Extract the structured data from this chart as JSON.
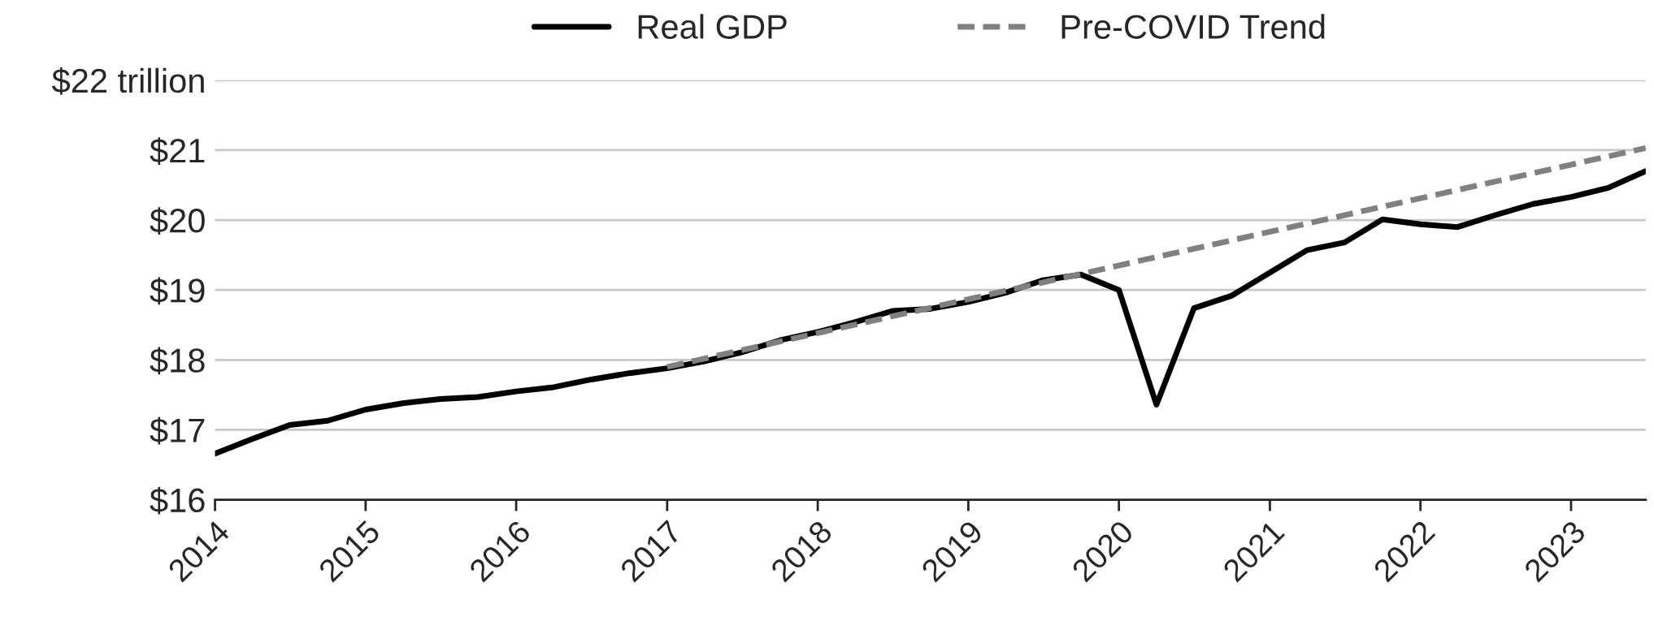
{
  "chart_data": {
    "type": "line",
    "series": [
      {
        "name": "Real GDP",
        "color": "#000000",
        "line_style": "solid",
        "x": [
          "2014-01",
          "2014-04",
          "2014-07",
          "2014-10",
          "2015-01",
          "2015-04",
          "2015-07",
          "2015-10",
          "2016-01",
          "2016-04",
          "2016-07",
          "2016-10",
          "2017-01",
          "2017-04",
          "2017-07",
          "2017-10",
          "2018-01",
          "2018-04",
          "2018-07",
          "2018-10",
          "2019-01",
          "2019-04",
          "2019-07",
          "2019-10",
          "2020-01",
          "2020-04",
          "2020-07",
          "2020-10",
          "2021-01",
          "2021-04",
          "2021-07",
          "2021-10",
          "2022-01",
          "2022-04",
          "2022-07",
          "2022-10",
          "2023-01",
          "2023-04",
          "2023-07"
        ],
        "values": [
          16.66,
          16.87,
          17.07,
          17.13,
          17.29,
          17.38,
          17.44,
          17.47,
          17.55,
          17.61,
          17.72,
          17.81,
          17.88,
          17.98,
          18.11,
          18.28,
          18.4,
          18.54,
          18.7,
          18.73,
          18.83,
          18.96,
          19.14,
          19.22,
          19.0,
          17.36,
          18.74,
          18.92,
          19.25,
          19.57,
          19.68,
          20.01,
          19.94,
          19.9,
          20.07,
          20.23,
          20.33,
          20.46,
          20.7
        ]
      },
      {
        "name": "Pre-COVID Trend",
        "color": "#808080",
        "line_style": "dashed",
        "x": [
          "2017-01",
          "2019-10",
          "2023-07"
        ],
        "values": [
          17.9,
          19.23,
          21.03
        ]
      }
    ],
    "xlim": [
      "2014-01",
      "2023-07"
    ],
    "xticks": [
      "2014",
      "2015",
      "2016",
      "2017",
      "2018",
      "2019",
      "2020",
      "2021",
      "2022",
      "2023"
    ],
    "ylim": [
      16,
      22
    ],
    "yticks": [
      {
        "value": 16,
        "label": "$16"
      },
      {
        "value": 17,
        "label": "$17"
      },
      {
        "value": 18,
        "label": "$18"
      },
      {
        "value": 19,
        "label": "$19"
      },
      {
        "value": 20,
        "label": "$20"
      },
      {
        "value": 21,
        "label": "$21"
      },
      {
        "value": 22,
        "label": "$22 trillion"
      }
    ],
    "grid": "y",
    "legend": "top"
  }
}
